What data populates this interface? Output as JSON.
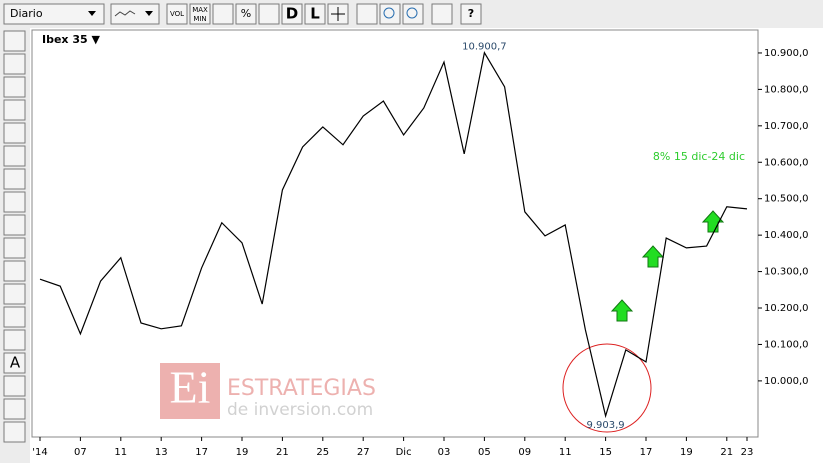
{
  "toolbar": {
    "period": "Diario",
    "buttons": [
      "VOL",
      "MAX",
      "MIN",
      "%",
      "D",
      "L",
      "?"
    ]
  },
  "side_tool_text": "A",
  "watermark": {
    "logo": "Ei",
    "line1": "ESTRATEGIAS",
    "line2": "de inversion.com"
  },
  "chart_data": {
    "type": "line",
    "title": "Ibex 35 ▼",
    "categories": [
      "'14",
      null,
      "07",
      null,
      "11",
      null,
      "13",
      null,
      "17",
      null,
      "19",
      null,
      "21",
      null,
      "25",
      null,
      "27",
      null,
      "Dic",
      null,
      "03",
      null,
      "05",
      null,
      "09",
      null,
      "11",
      null,
      "15",
      null,
      "17",
      null,
      "19",
      null,
      "21",
      "23"
    ],
    "series": [
      {
        "name": "Ibex 35",
        "color": "#000000",
        "values": [
          10279,
          10260,
          10129,
          10274,
          10338,
          10159,
          10143,
          10151,
          10310,
          10434,
          10379,
          10211,
          10524,
          10642,
          10697,
          10648,
          10727,
          10768,
          10675,
          10749,
          10875,
          10623,
          10900.7,
          10807,
          10464,
          10398,
          10428,
          10140,
          9903.9,
          10085,
          10052,
          10392,
          10365,
          10370,
          10478,
          10472
        ]
      }
    ],
    "value_labels": [
      null,
      null,
      null,
      null,
      null,
      null,
      null,
      null,
      null,
      null,
      null,
      null,
      null,
      null,
      null,
      null,
      null,
      null,
      null,
      null,
      null,
      null,
      "10.900,7",
      null,
      null,
      null,
      null,
      null,
      "9.903,9",
      null,
      null,
      null,
      null,
      null,
      null,
      null
    ],
    "annotation": "8% 15 dic-24 dic",
    "ylim": [
      9846,
      10963
    ],
    "yticks": [
      {
        "value": 10000,
        "label": "10.000,0"
      },
      {
        "value": 10100,
        "label": "10.100,0"
      },
      {
        "value": 10200,
        "label": "10.200,0"
      },
      {
        "value": 10300,
        "label": "10.300,0"
      },
      {
        "value": 10400,
        "label": "10.400,0"
      },
      {
        "value": 10500,
        "label": "10.500,0"
      },
      {
        "value": 10600,
        "label": "10.600,0"
      },
      {
        "value": 10700,
        "label": "10.700,0"
      },
      {
        "value": 10800,
        "label": "10.800,0"
      },
      {
        "value": 10900,
        "label": "10.900,0"
      }
    ],
    "grid": false
  }
}
